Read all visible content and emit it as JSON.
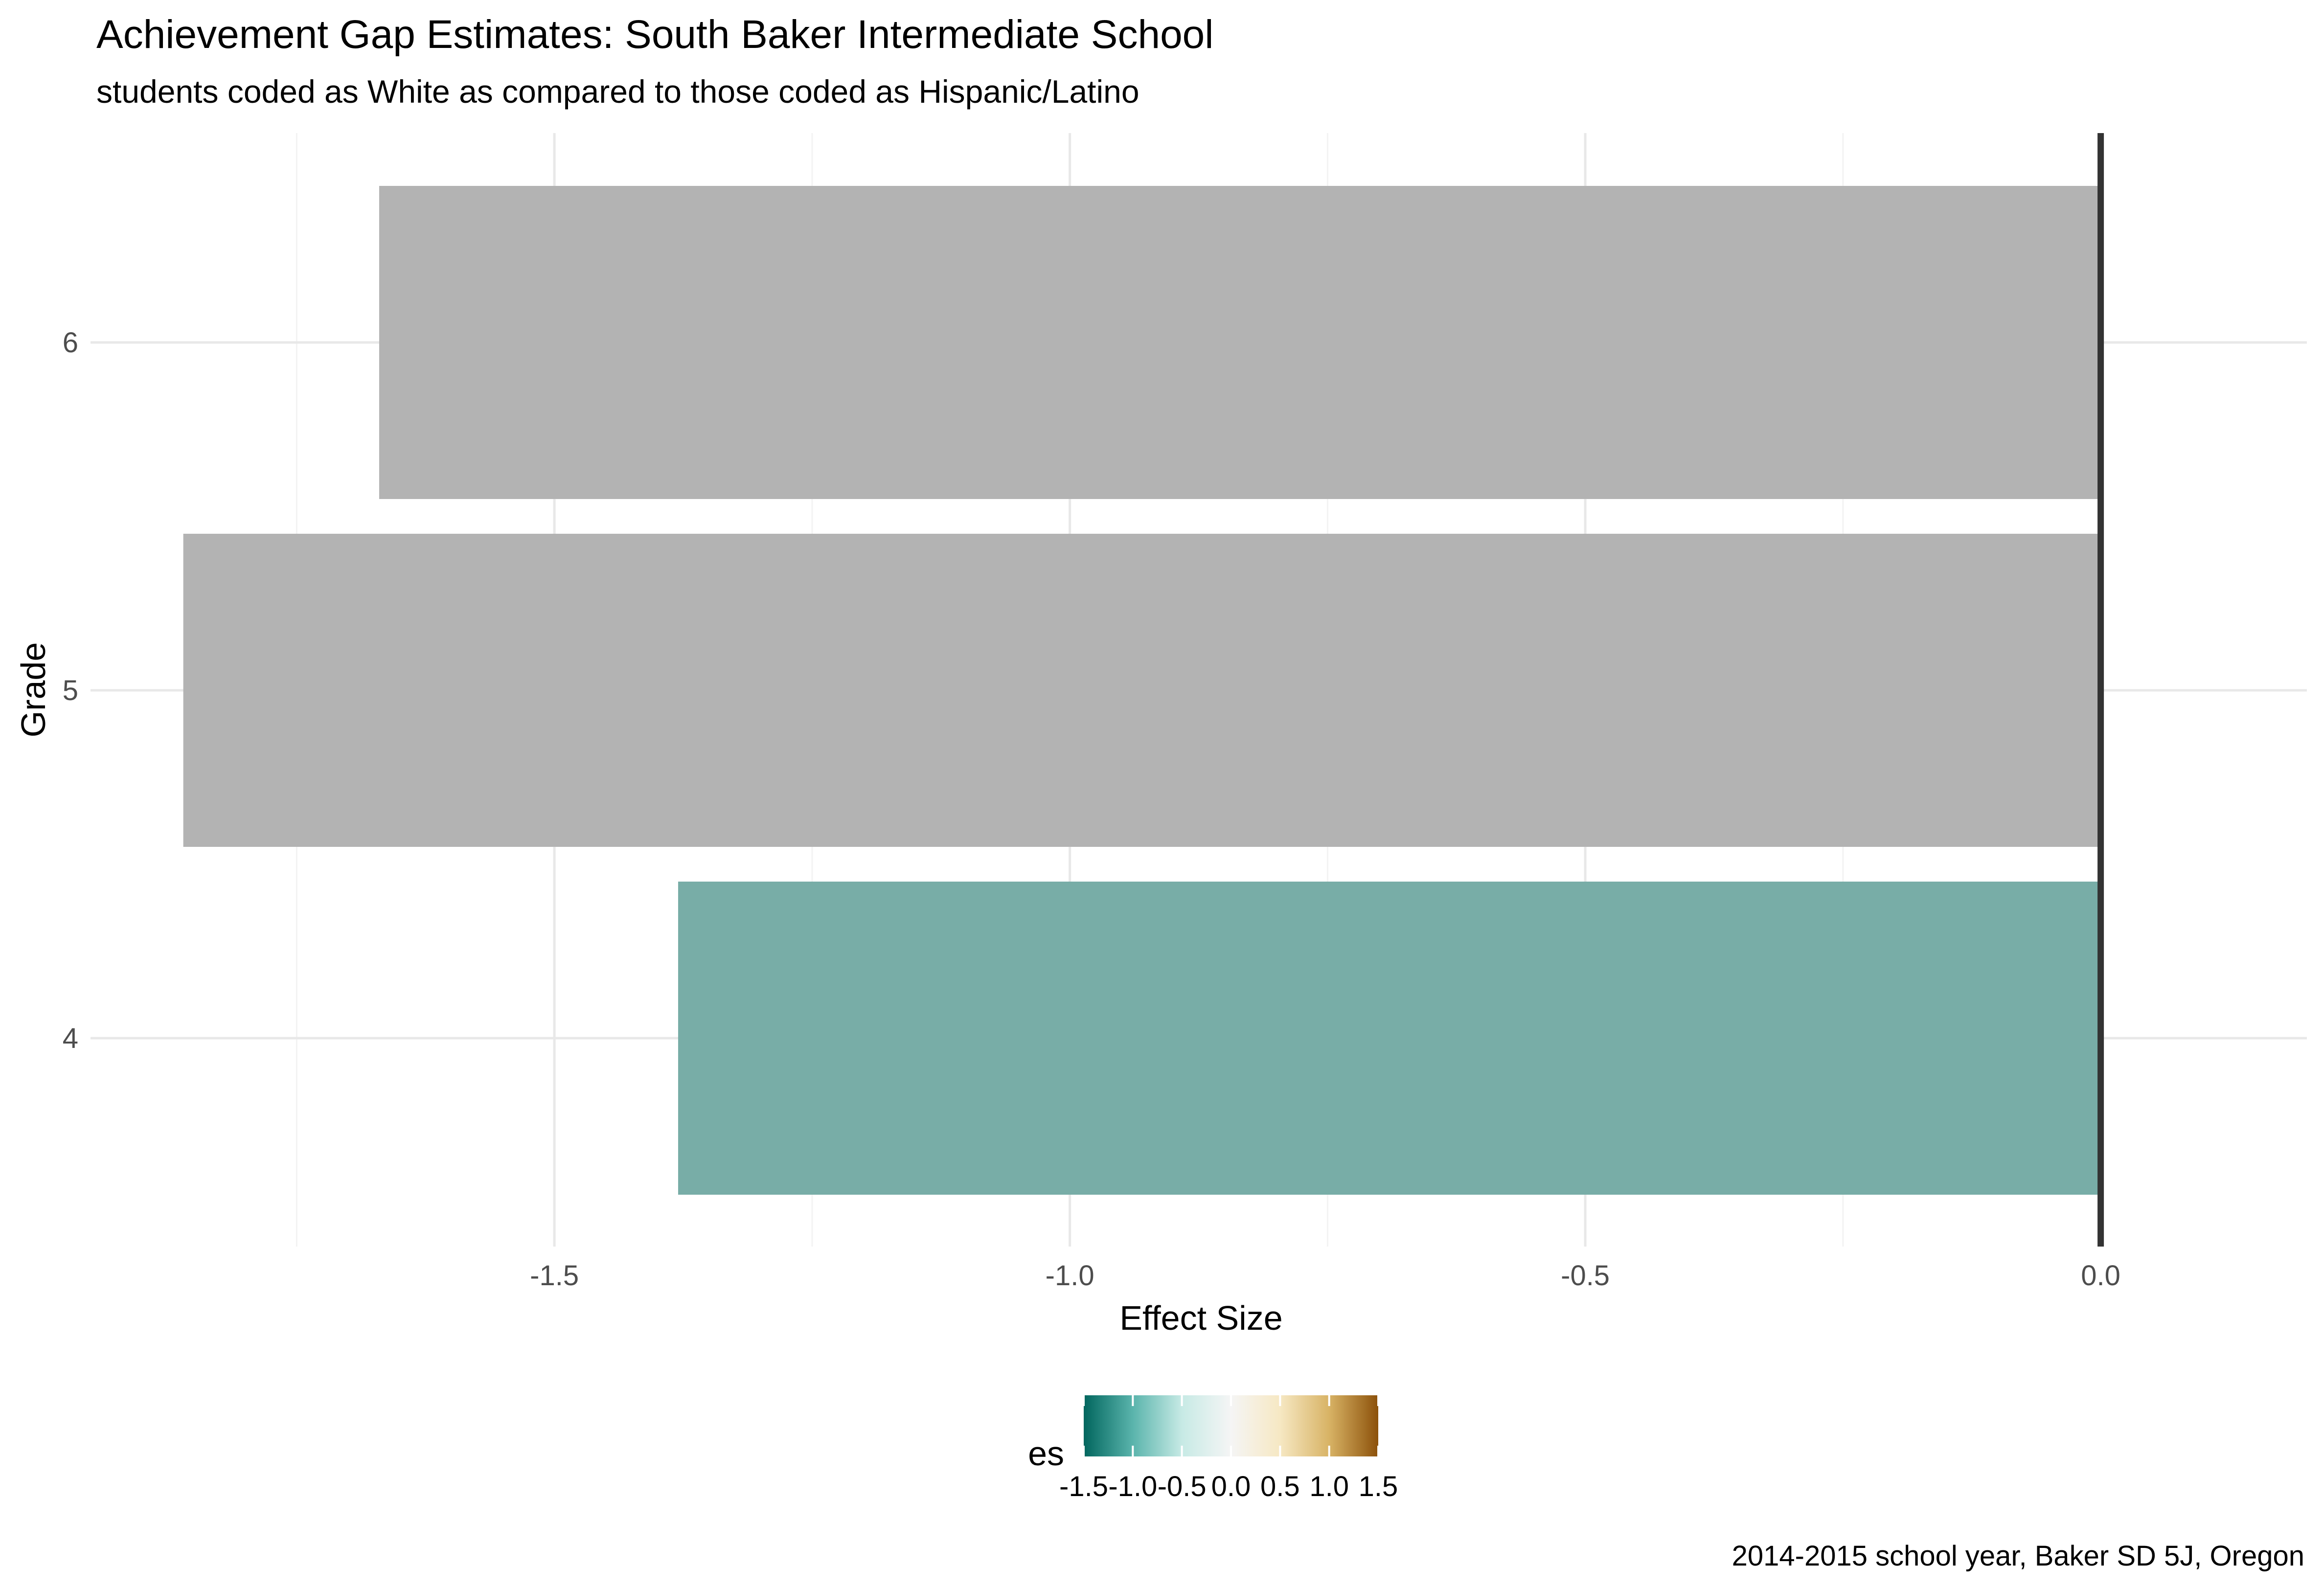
{
  "chart_data": {
    "type": "bar",
    "orientation": "horizontal",
    "title": "Achievement Gap Estimates: South Baker Intermediate School",
    "subtitle": "students coded as White as compared to those coded as Hispanic/Latino",
    "caption": "2014-2015 school year, Baker SD 5J, Oregon",
    "xlabel": "Effect Size",
    "ylabel": "Grade",
    "categories": [
      "4",
      "5",
      "6"
    ],
    "values": [
      -1.38,
      -1.86,
      -1.67
    ],
    "bar_colors": [
      "#78ada7",
      "#b3b3b3",
      "#b3b3b3"
    ],
    "xlim": [
      -1.95,
      0.2
    ],
    "x_ticks": [
      "-1.5",
      "-1.0",
      "-0.5",
      "0.0"
    ],
    "x_tick_values": [
      -1.5,
      -1.0,
      -0.5,
      0.0
    ],
    "x_minor_ticks": [
      -1.75,
      -1.25,
      -0.75,
      -0.25
    ],
    "y_ticks": [
      "4",
      "5",
      "6"
    ],
    "reference_line_x": 0.0,
    "grid": true,
    "legend": {
      "title": "es",
      "placement": "bottom",
      "type": "colorbar",
      "range": [
        -1.5,
        1.5
      ],
      "tick_labels": [
        "-1.5",
        "-1.0",
        "-0.5",
        "0.0",
        "0.5",
        "1.0",
        "1.5"
      ],
      "tick_values": [
        -1.5,
        -1.0,
        -0.5,
        0.0,
        0.5,
        1.0,
        1.5
      ],
      "colors": [
        "#01665e",
        "#5ab4ac",
        "#c7eae5",
        "#f5f5f5",
        "#f6e8c3",
        "#d8b365",
        "#8c510a"
      ]
    }
  }
}
